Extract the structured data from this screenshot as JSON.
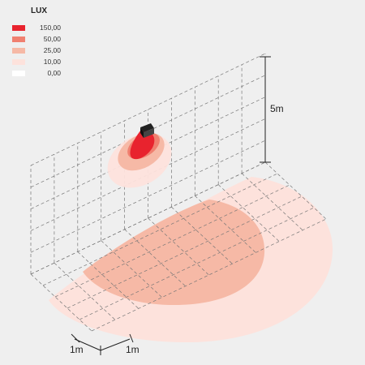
{
  "legend": {
    "title": "LUX",
    "items": [
      {
        "label": "150,00",
        "color": "#e8232e"
      },
      {
        "label": "50,00",
        "color": "#f08070"
      },
      {
        "label": "25,00",
        "color": "#f6b9a6"
      },
      {
        "label": "10,00",
        "color": "#fde2dc"
      },
      {
        "label": "0,00",
        "color": "#ffffff"
      }
    ]
  },
  "dimensions": {
    "height": "5m",
    "grid_x": "1m",
    "grid_y": "1m"
  }
}
